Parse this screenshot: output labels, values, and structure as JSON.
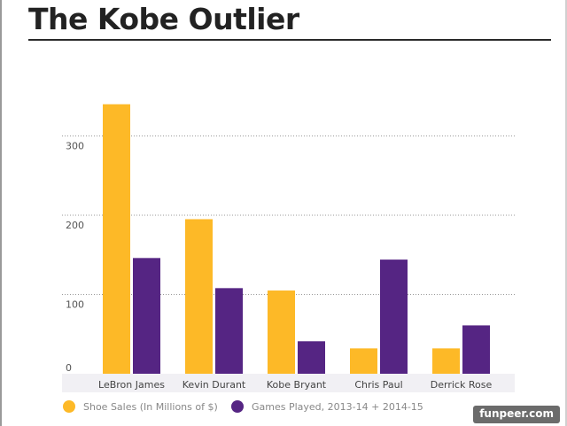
{
  "page": {
    "title": "The Kobe Outlier",
    "watermark": "funpeer.com"
  },
  "chart_data": {
    "type": "bar",
    "title": "The Kobe Outlier",
    "xlabel": "",
    "ylabel": "",
    "ylim": [
      0,
      350
    ],
    "y_ticks": [
      0,
      100,
      200,
      300
    ],
    "grid": true,
    "legend_position": "bottom-left",
    "categories": [
      "LeBron James",
      "Kevin Durant",
      "Kobe Bryant",
      "Chris Paul",
      "Derrick Rose"
    ],
    "series": [
      {
        "name": "Shoe Sales (In Millions of $)",
        "color": "#FDB927",
        "values": [
          340,
          195,
          105,
          32,
          32
        ]
      },
      {
        "name": "Games Played, 2013-14 + 2014-15",
        "color": "#552583",
        "values": [
          146,
          108,
          41,
          144,
          61
        ]
      }
    ]
  }
}
